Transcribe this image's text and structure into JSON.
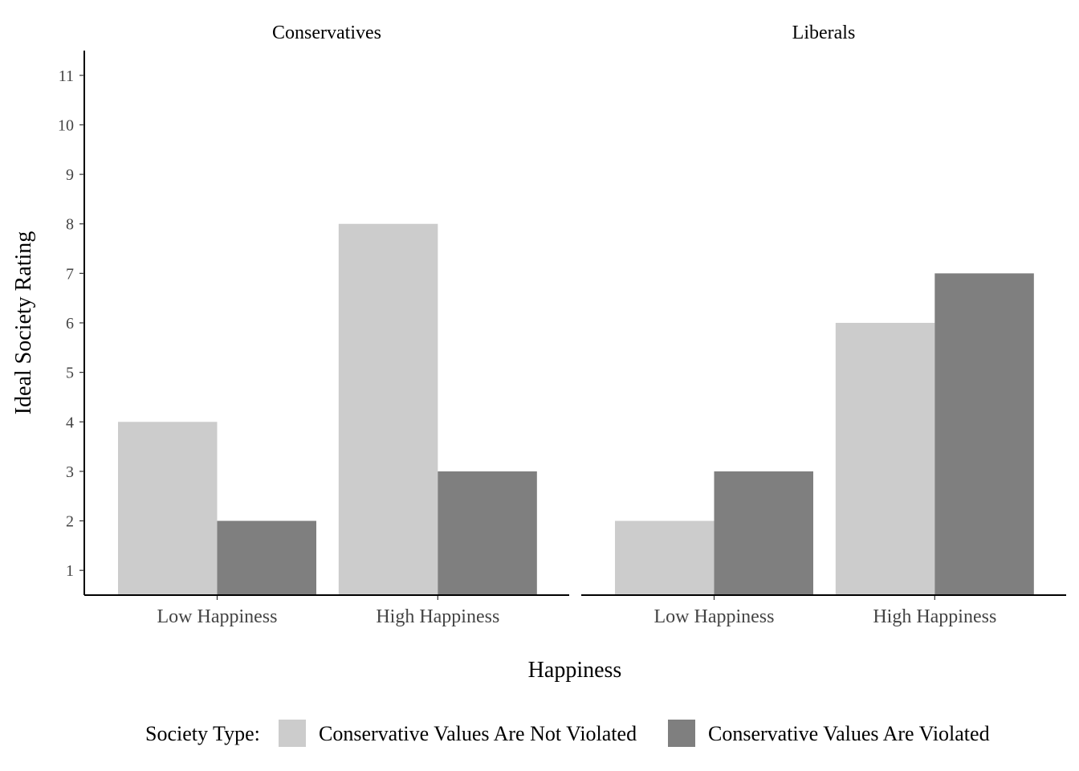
{
  "chart_data": {
    "type": "bar",
    "ylabel": "Ideal Society Rating",
    "xlabel": "Happiness",
    "ylim": [
      0.5,
      11.5
    ],
    "yticks": [
      1,
      2,
      3,
      4,
      5,
      6,
      7,
      8,
      9,
      10,
      11
    ],
    "categories": [
      "Low Happiness",
      "High Happiness"
    ],
    "grid": false,
    "legend": {
      "position": "bottom",
      "title": "Society Type:",
      "entries": [
        "Conservative Values Are Not Violated",
        "Conservative Values Are Violated"
      ]
    },
    "colors": [
      "#cccccc",
      "#7f7f7f"
    ],
    "facets": [
      {
        "title": "Conservatives",
        "series": [
          {
            "name": "Conservative Values Are Not Violated",
            "values": [
              4,
              8
            ]
          },
          {
            "name": "Conservative Values Are Violated",
            "values": [
              2,
              3
            ]
          }
        ]
      },
      {
        "title": "Liberals",
        "series": [
          {
            "name": "Conservative Values Are Not Violated",
            "values": [
              2,
              6
            ]
          },
          {
            "name": "Conservative Values Are Violated",
            "values": [
              3,
              7
            ]
          }
        ]
      }
    ]
  }
}
